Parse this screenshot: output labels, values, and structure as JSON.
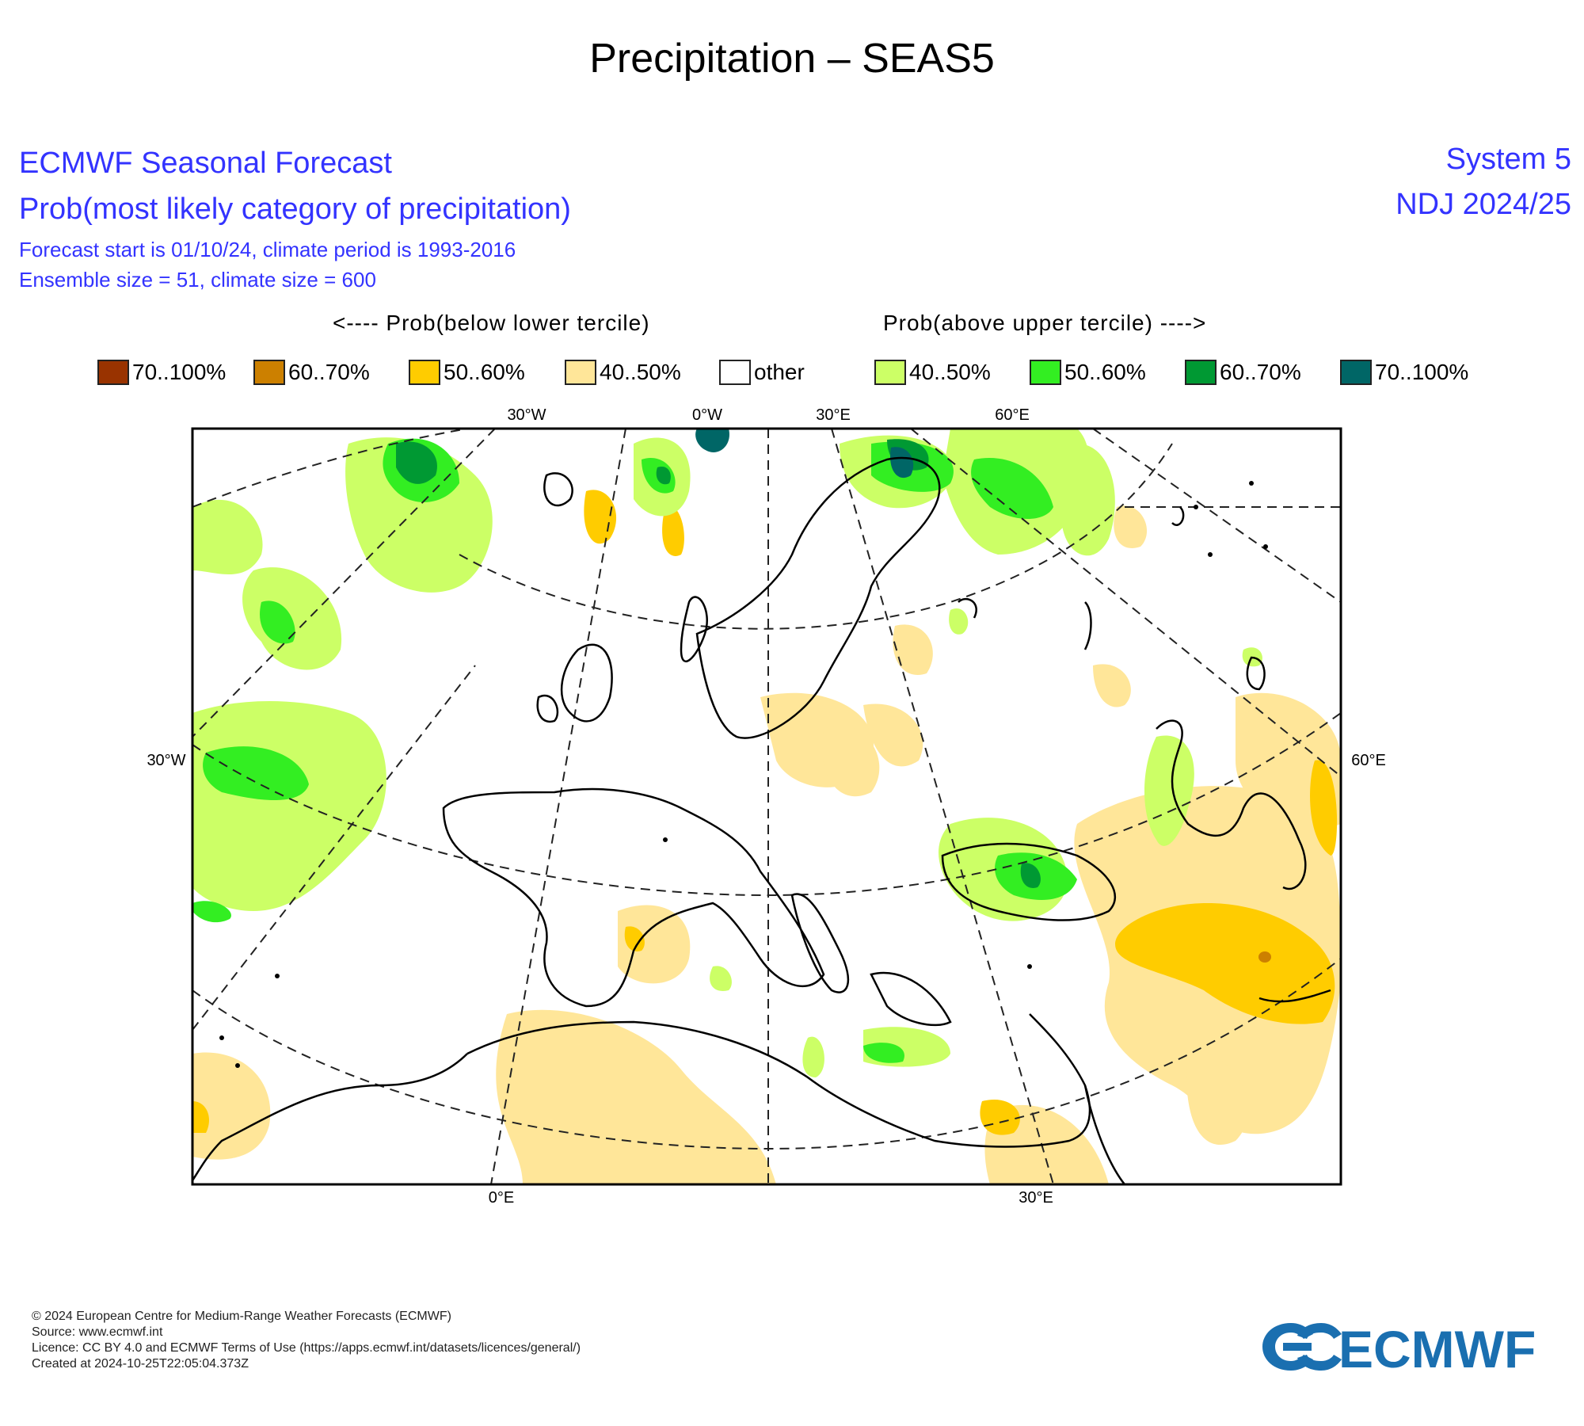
{
  "title": "Precipitation – SEAS5",
  "header": {
    "line1": "ECMWF Seasonal Forecast",
    "line2": "Prob(most likely category of precipitation)",
    "line3": "Forecast start is 01/10/24, climate period is 1993-2016",
    "line4": "Ensemble size = 51, climate size = 600",
    "system": "System 5",
    "period": "NDJ 2024/25"
  },
  "legend": {
    "below_heading": "<---- Prob(below lower tercile)",
    "above_heading": "Prob(above upper tercile) ---->",
    "items": [
      {
        "label": "70..100%",
        "color": "#993300"
      },
      {
        "label": "60..70%",
        "color": "#cc8000"
      },
      {
        "label": "50..60%",
        "color": "#ffcc00"
      },
      {
        "label": "40..50%",
        "color": "#ffe699"
      },
      {
        "label": "other",
        "color": "#ffffff"
      },
      {
        "label": "40..50%",
        "color": "#ccff66"
      },
      {
        "label": "50..60%",
        "color": "#33ee22"
      },
      {
        "label": "60..70%",
        "color": "#009933"
      },
      {
        "label": "70..100%",
        "color": "#006666"
      }
    ]
  },
  "map": {
    "top_labels": [
      "30°W",
      "0°W",
      "30°E",
      "60°E"
    ],
    "left_label": "30°W",
    "right_label": "60°E",
    "bottom_labels": [
      "0°E",
      "30°E"
    ]
  },
  "footer": {
    "line1": "© 2024 European Centre for Medium-Range Weather Forecasts (ECMWF)",
    "line2": "Source: www.ecmwf.int",
    "line3": "Licence: CC BY 4.0 and ECMWF Terms of Use (https://apps.ecmwf.int/datasets/licences/general/)",
    "line4": "Created at 2024-10-25T22:05:04.373Z"
  },
  "logo_text": "ECMWF"
}
